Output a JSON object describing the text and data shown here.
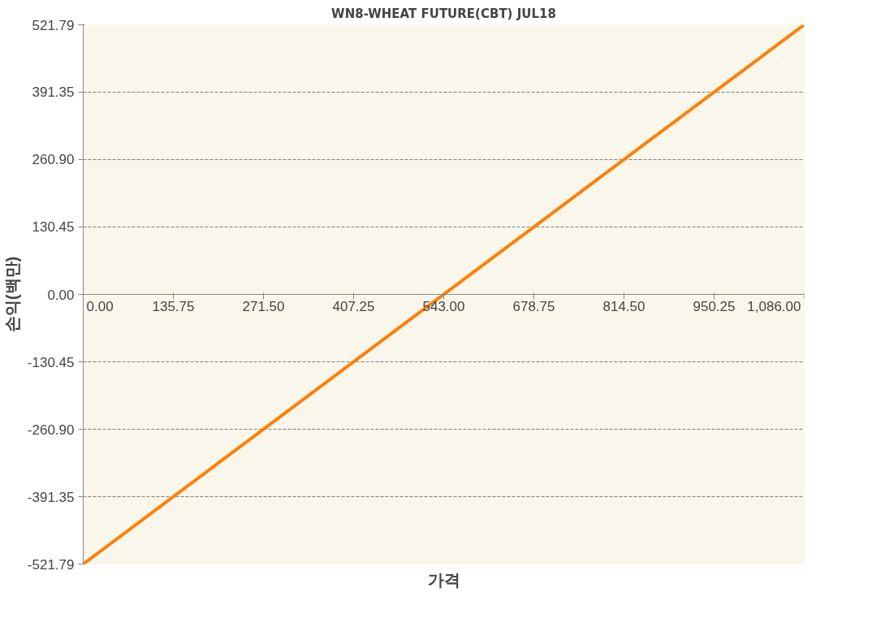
{
  "chart_data": {
    "type": "line",
    "title": "WN8-WHEAT FUTURE(CBT) JUL18",
    "xlabel": "가격",
    "ylabel": "손익(백만)",
    "x": [
      0,
      1086
    ],
    "series": [
      {
        "color": "#ff8000",
        "values": [
          -521.79,
          521.79
        ]
      }
    ],
    "xlim": [
      0,
      1086
    ],
    "ylim": [
      -521.79,
      521.79
    ],
    "xticks": [
      {
        "value": 0,
        "label": "0.00"
      },
      {
        "value": 135.75,
        "label": "135.75"
      },
      {
        "value": 271.5,
        "label": "271.50"
      },
      {
        "value": 407.25,
        "label": "407.25"
      },
      {
        "value": 543,
        "label": "543.00"
      },
      {
        "value": 678.75,
        "label": "678.75"
      },
      {
        "value": 814.5,
        "label": "814.50"
      },
      {
        "value": 950.25,
        "label": "950.25"
      },
      {
        "value": 1086,
        "label": "1,086.00"
      }
    ],
    "yticks": [
      {
        "value": -521.79,
        "label": "-521.79"
      },
      {
        "value": -391.35,
        "label": "-391.35"
      },
      {
        "value": -260.9,
        "label": "-260.90"
      },
      {
        "value": -130.45,
        "label": "-130.45"
      },
      {
        "value": 0,
        "label": "0.00"
      },
      {
        "value": 130.45,
        "label": "130.45"
      },
      {
        "value": 260.9,
        "label": "260.90"
      },
      {
        "value": 391.35,
        "label": "391.35"
      },
      {
        "value": 521.79,
        "label": "521.79"
      }
    ],
    "grid": "y",
    "line_style": "solid"
  }
}
